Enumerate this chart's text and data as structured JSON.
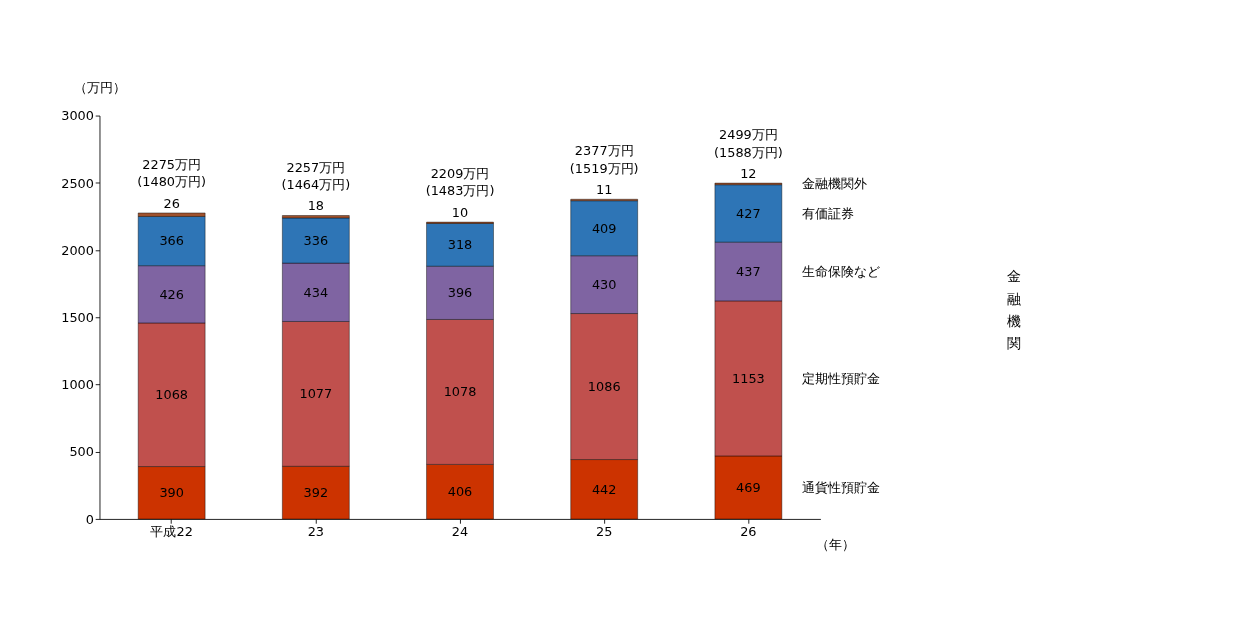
{
  "chart_data": {
    "type": "bar",
    "stacked": true,
    "xlabel": "（年）",
    "ylabel": "（万円）",
    "categories": [
      "平成22",
      "23",
      "24",
      "25",
      "26"
    ],
    "series": [
      {
        "name": "通貨性預貯金",
        "color": "#cc3300",
        "values": [
          390,
          392,
          406,
          442,
          469
        ]
      },
      {
        "name": "定期性預貯金",
        "color": "#c0504d",
        "values": [
          1068,
          1077,
          1078,
          1086,
          1153
        ]
      },
      {
        "name": "生命保険など",
        "color": "#7f64a2",
        "values": [
          426,
          434,
          396,
          430,
          437
        ]
      },
      {
        "name": "有価証券",
        "color": "#2e75b6",
        "values": [
          366,
          336,
          318,
          409,
          427
        ]
      },
      {
        "name": "金融機関外",
        "color": "#a0522d",
        "values": [
          26,
          18,
          10,
          11,
          12
        ]
      }
    ],
    "ylim": [
      0,
      3000
    ],
    "yticks": [
      0,
      500,
      1000,
      1500,
      2000,
      2500,
      3000
    ],
    "data_labels": true,
    "totals": [
      "2275万円\n(1480万円)",
      "2257万円\n(1464万円)",
      "2209万円\n(1483万円)",
      "2377万円\n(1519万円)",
      "2499万円\n(1588万円)"
    ],
    "annotations": [
      "金融機関"
    ]
  }
}
